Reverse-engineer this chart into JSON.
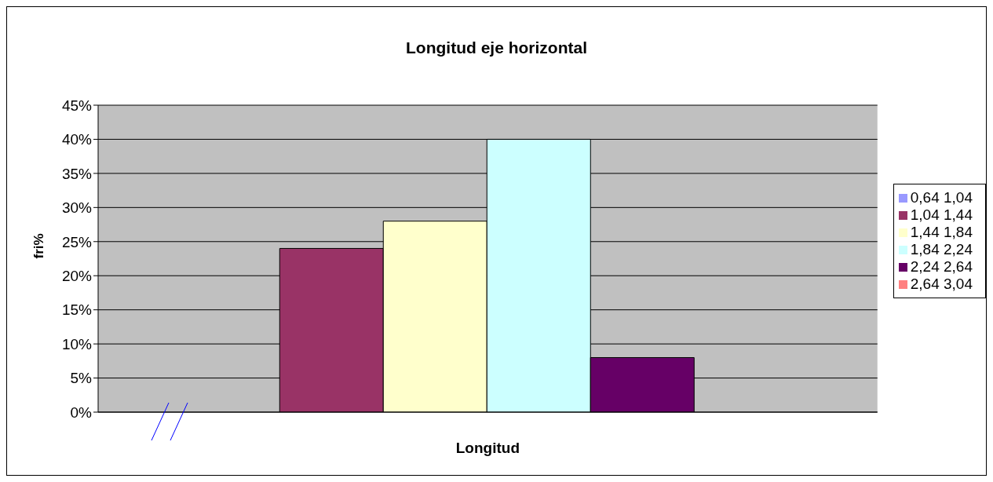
{
  "chart_data": {
    "type": "bar",
    "title": "Longitud eje horizontal",
    "xlabel": "Longitud",
    "ylabel": "fri%",
    "categories": [
      null
    ],
    "series": [
      {
        "name": "0,64 1,04",
        "color": "#9999ff",
        "values": [
          0
        ]
      },
      {
        "name": "1,04 1,44",
        "color": "#993366",
        "values": [
          24
        ]
      },
      {
        "name": "1,44 1,84",
        "color": "#ffffcc",
        "values": [
          28
        ]
      },
      {
        "name": "1,84 2,24",
        "color": "#ccffff",
        "values": [
          40
        ]
      },
      {
        "name": "2,24 2,64",
        "color": "#660066",
        "values": [
          8
        ]
      },
      {
        "name": "2,64 3,04",
        "color": "#ff8080",
        "values": [
          0
        ]
      }
    ],
    "ylim": [
      0,
      45
    ],
    "yticks": [
      {
        "value": 0,
        "label": "0%"
      },
      {
        "value": 5,
        "label": "5%"
      },
      {
        "value": 10,
        "label": "10%"
      },
      {
        "value": 15,
        "label": "15%"
      },
      {
        "value": 20,
        "label": "20%"
      },
      {
        "value": 25,
        "label": "25%"
      },
      {
        "value": 30,
        "label": "30%"
      },
      {
        "value": 35,
        "label": "35%"
      },
      {
        "value": 40,
        "label": "40%"
      },
      {
        "value": 45,
        "label": "45%"
      }
    ],
    "grid": "y",
    "legend": "right"
  }
}
